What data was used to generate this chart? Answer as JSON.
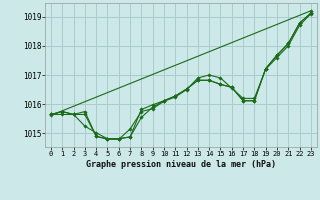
{
  "background_color": "#cce8e8",
  "grid_color": "#aacccc",
  "line_color": "#1a6b1a",
  "xlabel": "Graphe pression niveau de la mer (hPa)",
  "xlim": [
    -0.5,
    23.5
  ],
  "ylim": [
    1014.55,
    1019.45
  ],
  "yticks": [
    1015,
    1016,
    1017,
    1018,
    1019
  ],
  "xticks": [
    0,
    1,
    2,
    3,
    4,
    5,
    6,
    7,
    8,
    9,
    10,
    11,
    12,
    13,
    14,
    15,
    16,
    17,
    18,
    19,
    20,
    21,
    22,
    23
  ],
  "series": [
    [
      1015.65,
      1015.75,
      1015.65,
      1015.75,
      1014.9,
      1014.8,
      1014.8,
      1015.15,
      1015.75,
      1015.85,
      1016.1,
      1016.25,
      1016.5,
      1016.9,
      1017.0,
      1016.9,
      1016.55,
      1016.2,
      1016.2,
      1017.2,
      1017.6,
      1018.0,
      1018.7,
      1019.1
    ],
    [
      1015.65,
      1015.75,
      1015.65,
      1015.65,
      1014.9,
      1014.82,
      1014.82,
      1014.88,
      1015.55,
      1015.9,
      1016.12,
      1016.28,
      1016.52,
      1016.82,
      1016.82,
      1016.68,
      1016.58,
      1016.12,
      1016.12,
      1017.22,
      1017.68,
      1018.08,
      1018.78,
      1019.12
    ],
    [
      1015.65,
      1015.65,
      1015.65,
      1015.25,
      1015.02,
      1014.82,
      1014.82,
      1014.88,
      1015.82,
      1015.98,
      1016.12,
      1016.28,
      1016.52,
      1016.82,
      1016.82,
      1016.68,
      1016.58,
      1016.12,
      1016.12,
      1017.22,
      1017.68,
      1018.08,
      1018.78,
      1019.12
    ],
    [
      1015.62,
      1019.2
    ]
  ],
  "series4_x": [
    0,
    23
  ]
}
